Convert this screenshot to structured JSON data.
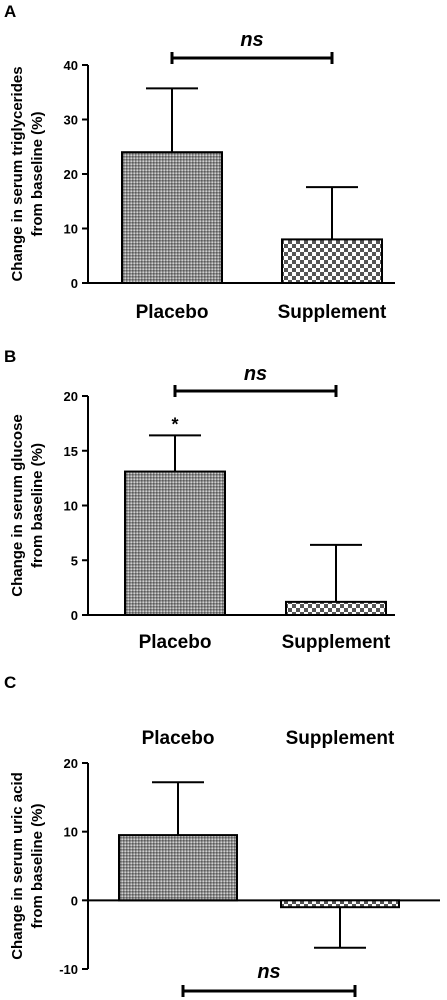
{
  "chart_data": [
    {
      "panel": "A",
      "type": "bar",
      "categories": [
        "Placebo",
        "Supplement"
      ],
      "values": [
        24,
        8
      ],
      "error_upper": [
        35.7,
        17.6
      ],
      "ylabel": [
        "Change in serum triglycerides",
        "from baseline (%)"
      ],
      "ylim": [
        0,
        40
      ],
      "yticks": [
        0,
        10,
        20,
        30,
        40
      ],
      "annotation": "ns",
      "significance_marks": [
        "",
        ""
      ],
      "category_labels_position": "bottom"
    },
    {
      "panel": "B",
      "type": "bar",
      "categories": [
        "Placebo",
        "Supplement"
      ],
      "values": [
        13.1,
        1.2
      ],
      "error_upper": [
        16.4,
        6.4
      ],
      "ylabel": [
        "Change in serum glucose",
        "from baseline (%)"
      ],
      "ylim": [
        0,
        20
      ],
      "yticks": [
        0,
        5,
        10,
        15,
        20
      ],
      "annotation": "ns",
      "significance_marks": [
        "*",
        ""
      ],
      "category_labels_position": "bottom"
    },
    {
      "panel": "C",
      "type": "bar",
      "categories": [
        "Placebo",
        "Supplement"
      ],
      "values": [
        9.5,
        -1
      ],
      "error_upper": [
        17.2,
        -6.9
      ],
      "ylabel": [
        "Change in serum uric acid",
        "from baseline (%)"
      ],
      "ylim": [
        -10,
        20
      ],
      "yticks": [
        -10,
        0,
        10,
        20
      ],
      "annotation": "ns",
      "significance_marks": [
        "",
        ""
      ],
      "category_labels_position": "top"
    }
  ],
  "colors": {
    "bar_fill_dark": "#8c8c8c",
    "bar_fill_light": "#e6e6e6",
    "line": "#000000"
  }
}
